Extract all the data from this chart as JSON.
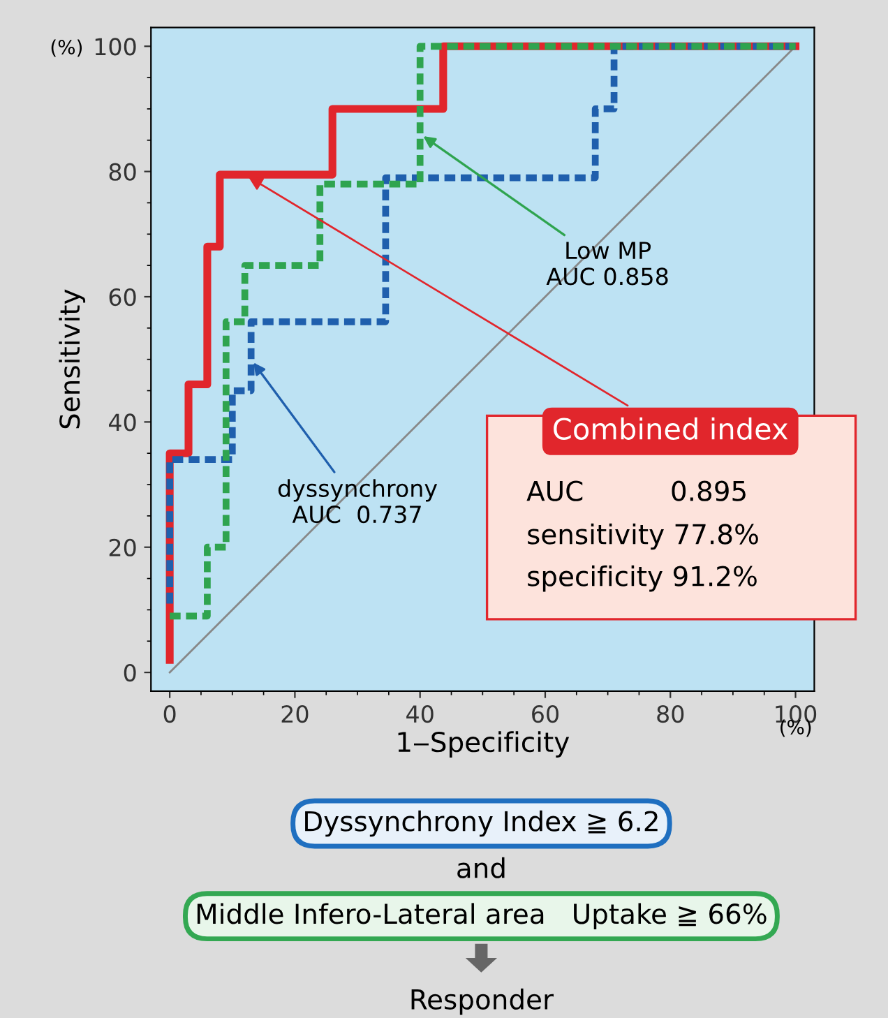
{
  "chart_data": {
    "type": "step",
    "xlabel": "1‒Specificity",
    "ylabel": "Sensitivity",
    "xlim": [
      -3,
      103
    ],
    "ylim": [
      -3,
      103
    ],
    "xticks": [
      0,
      20,
      40,
      60,
      80,
      100
    ],
    "yticks": [
      0,
      20,
      40,
      60,
      80,
      100
    ],
    "grid": false,
    "legend": false,
    "marker": "none",
    "series": [
      {
        "color": "#888888",
        "type": "line",
        "line_style": "solid",
        "x": [
          0,
          100
        ],
        "values": [
          0,
          100
        ]
      },
      {
        "color": "#1f5fad",
        "line_style": "dashed",
        "x": [
          0,
          0,
          10,
          10,
          13,
          13,
          34.5,
          34.5,
          68,
          68,
          71,
          71,
          100
        ],
        "values": [
          11,
          34,
          34,
          45,
          45,
          56,
          56,
          79,
          79,
          90,
          90,
          100,
          100
        ]
      },
      {
        "color": "#2fa44f",
        "line_style": "dashed",
        "x": [
          0,
          6,
          6,
          9,
          9,
          12,
          12,
          24,
          24,
          40,
          40,
          100
        ],
        "values": [
          9,
          9,
          20,
          20,
          56,
          56,
          65,
          65,
          78,
          78,
          100,
          100
        ]
      },
      {
        "color": "#e1262c",
        "line_style": "solid",
        "x": [
          0,
          0,
          3,
          3,
          6,
          6,
          8,
          8,
          26,
          26,
          43.7,
          43.7,
          100
        ],
        "values": [
          2,
          35,
          35,
          46,
          46,
          68,
          68,
          79.5,
          79.5,
          90,
          90,
          100,
          100
        ]
      }
    ],
    "annotations": [
      {
        "text": "Low MP\nAUC 0.858",
        "x": 40,
        "y": 86
      },
      {
        "text": "dyssynchrony\nAUC  0.737",
        "x": 13,
        "y": 50
      },
      {
        "text": "Combined index",
        "x": 12,
        "y": 79.5
      },
      "AUC          0.895",
      "sensitivity 77.8%",
      "specificity 91.2%",
      "Dyssynchrony Index ≧ 6.2",
      "and",
      "Middle Infero-Lateral area   Uptake ≧ 66%",
      "Responder",
      "(%)",
      "(%)"
    ]
  }
}
